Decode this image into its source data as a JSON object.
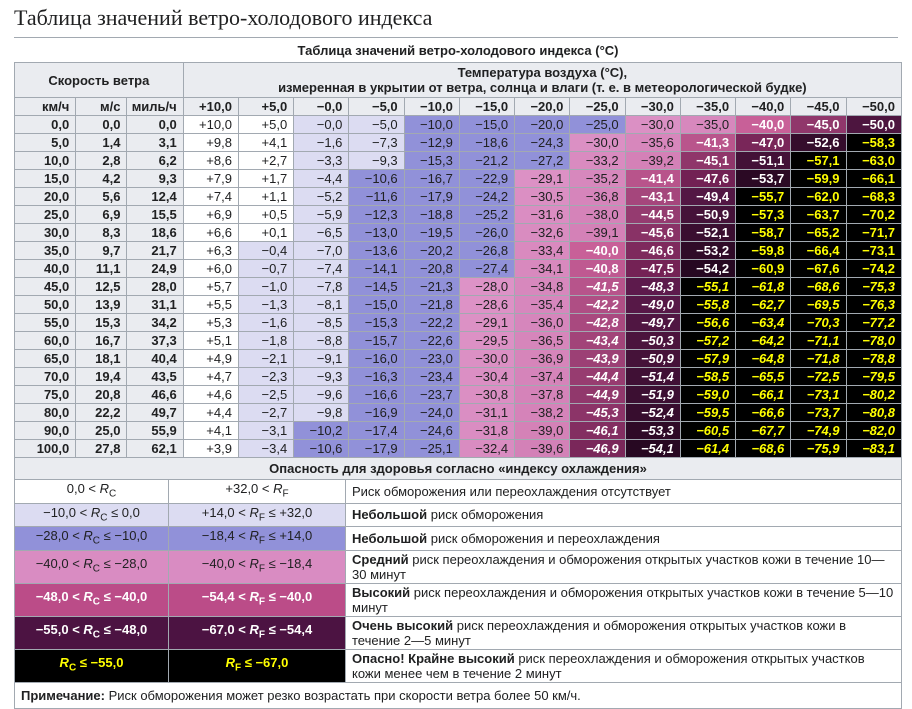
{
  "page_title": "Таблица значений ветро-холодового индекса",
  "table": {
    "caption": "Таблица значений ветро-холодового индекса (°C)",
    "speed_group_header": "Скорость ветра",
    "temp_header_line1": "Температура воздуха (°C),",
    "temp_header_line2": "измеренная в укрытии от ветра, солнца и влаги (т. е. в метеорологической будке)",
    "speed_units": [
      "км/ч",
      "м/с",
      "миль/ч"
    ],
    "temp_columns": [
      "+10,0",
      "+5,0",
      "−0,0",
      "−5,0",
      "−10,0",
      "−15,0",
      "−20,0",
      "−25,0",
      "−30,0",
      "−35,0",
      "−40,0",
      "−45,0",
      "−50,0"
    ],
    "rows": [
      {
        "speed": [
          "0,0",
          "0,0",
          "0,0"
        ],
        "values": [
          "+10,0",
          "+5,0",
          "−0,0",
          "−5,0",
          "−10,0",
          "−15,0",
          "−20,0",
          "−25,0",
          "−30,0",
          "−35,0",
          "−40,0",
          "−45,0",
          "−50,0"
        ]
      },
      {
        "speed": [
          "5,0",
          "1,4",
          "3,1"
        ],
        "values": [
          "+9,8",
          "+4,1",
          "−1,6",
          "−7,3",
          "−12,9",
          "−18,6",
          "−24,3",
          "−30,0",
          "−35,6",
          "−41,3",
          "−47,0",
          "−52,6",
          "−58,3"
        ]
      },
      {
        "speed": [
          "10,0",
          "2,8",
          "6,2"
        ],
        "values": [
          "+8,6",
          "+2,7",
          "−3,3",
          "−9,3",
          "−15,3",
          "−21,2",
          "−27,2",
          "−33,2",
          "−39,2",
          "−45,1",
          "−51,1",
          "−57,1",
          "−63,0"
        ]
      },
      {
        "speed": [
          "15,0",
          "4,2",
          "9,3"
        ],
        "values": [
          "+7,9",
          "+1,7",
          "−4,4",
          "−10,6",
          "−16,7",
          "−22,9",
          "−29,1",
          "−35,2",
          "−41,4",
          "−47,6",
          "−53,7",
          "−59,9",
          "−66,1"
        ]
      },
      {
        "speed": [
          "20,0",
          "5,6",
          "12,4"
        ],
        "values": [
          "+7,4",
          "+1,1",
          "−5,2",
          "−11,6",
          "−17,9",
          "−24,2",
          "−30,5",
          "−36,8",
          "−43,1",
          "−49,4",
          "−55,7",
          "−62,0",
          "−68,3"
        ]
      },
      {
        "speed": [
          "25,0",
          "6,9",
          "15,5"
        ],
        "values": [
          "+6,9",
          "+0,5",
          "−5,9",
          "−12,3",
          "−18,8",
          "−25,2",
          "−31,6",
          "−38,0",
          "−44,5",
          "−50,9",
          "−57,3",
          "−63,7",
          "−70,2"
        ]
      },
      {
        "speed": [
          "30,0",
          "8,3",
          "18,6"
        ],
        "values": [
          "+6,6",
          "+0,1",
          "−6,5",
          "−13,0",
          "−19,5",
          "−26,0",
          "−32,6",
          "−39,1",
          "−45,6",
          "−52,1",
          "−58,7",
          "−65,2",
          "−71,7"
        ]
      },
      {
        "speed": [
          "35,0",
          "9,7",
          "21,7"
        ],
        "values": [
          "+6,3",
          "−0,4",
          "−7,0",
          "−13,6",
          "−20,2",
          "−26,8",
          "−33,4",
          "−40,0",
          "−46,6",
          "−53,2",
          "−59,8",
          "−66,4",
          "−73,1"
        ]
      },
      {
        "speed": [
          "40,0",
          "11,1",
          "24,9"
        ],
        "values": [
          "+6,0",
          "−0,7",
          "−7,4",
          "−14,1",
          "−20,8",
          "−27,4",
          "−34,1",
          "−40,8",
          "−47,5",
          "−54,2",
          "−60,9",
          "−67,6",
          "−74,2"
        ]
      },
      {
        "speed": [
          "45,0",
          "12,5",
          "28,0"
        ],
        "values": [
          "+5,7",
          "−1,0",
          "−7,8",
          "−14,5",
          "−21,3",
          "−28,0",
          "−34,8",
          "−41,5",
          "−48,3",
          "−55,1",
          "−61,8",
          "−68,6",
          "−75,3"
        ]
      },
      {
        "speed": [
          "50,0",
          "13,9",
          "31,1"
        ],
        "values": [
          "+5,5",
          "−1,3",
          "−8,1",
          "−15,0",
          "−21,8",
          "−28,6",
          "−35,4",
          "−42,2",
          "−49,0",
          "−55,8",
          "−62,7",
          "−69,5",
          "−76,3"
        ]
      },
      {
        "speed": [
          "55,0",
          "15,3",
          "34,2"
        ],
        "values": [
          "+5,3",
          "−1,6",
          "−8,5",
          "−15,3",
          "−22,2",
          "−29,1",
          "−36,0",
          "−42,8",
          "−49,7",
          "−56,6",
          "−63,4",
          "−70,3",
          "−77,2"
        ]
      },
      {
        "speed": [
          "60,0",
          "16,7",
          "37,3"
        ],
        "values": [
          "+5,1",
          "−1,8",
          "−8,8",
          "−15,7",
          "−22,6",
          "−29,5",
          "−36,5",
          "−43,4",
          "−50,3",
          "−57,2",
          "−64,2",
          "−71,1",
          "−78,0"
        ]
      },
      {
        "speed": [
          "65,0",
          "18,1",
          "40,4"
        ],
        "values": [
          "+4,9",
          "−2,1",
          "−9,1",
          "−16,0",
          "−23,0",
          "−30,0",
          "−36,9",
          "−43,9",
          "−50,9",
          "−57,9",
          "−64,8",
          "−71,8",
          "−78,8"
        ]
      },
      {
        "speed": [
          "70,0",
          "19,4",
          "43,5"
        ],
        "values": [
          "+4,7",
          "−2,3",
          "−9,3",
          "−16,3",
          "−23,4",
          "−30,4",
          "−37,4",
          "−44,4",
          "−51,4",
          "−58,5",
          "−65,5",
          "−72,5",
          "−79,5"
        ]
      },
      {
        "speed": [
          "75,0",
          "20,8",
          "46,6"
        ],
        "values": [
          "+4,6",
          "−2,5",
          "−9,6",
          "−16,6",
          "−23,7",
          "−30,8",
          "−37,8",
          "−44,9",
          "−51,9",
          "−59,0",
          "−66,1",
          "−73,1",
          "−80,2"
        ]
      },
      {
        "speed": [
          "80,0",
          "22,2",
          "49,7"
        ],
        "values": [
          "+4,4",
          "−2,7",
          "−9,8",
          "−16,9",
          "−24,0",
          "−31,1",
          "−38,2",
          "−45,3",
          "−52,4",
          "−59,5",
          "−66,6",
          "−73,7",
          "−80,8"
        ]
      },
      {
        "speed": [
          "90,0",
          "25,0",
          "55,9"
        ],
        "values": [
          "+4,1",
          "−3,1",
          "−10,2",
          "−17,4",
          "−24,6",
          "−31,8",
          "−39,0",
          "−46,1",
          "−53,3",
          "−60,5",
          "−67,7",
          "−74,9",
          "−82,0"
        ]
      },
      {
        "speed": [
          "100,0",
          "27,8",
          "62,1"
        ],
        "values": [
          "+3,9",
          "−3,4",
          "−10,6",
          "−17,9",
          "−25,1",
          "−32,4",
          "−39,6",
          "−46,9",
          "−54,1",
          "−61,4",
          "−68,6",
          "−75,9",
          "−83,1"
        ]
      }
    ]
  },
  "legend": {
    "section_title": "Опасность для здоровья согласно «индексу охлаждения»",
    "rows": [
      {
        "rc": "0,0 < R_C",
        "rf": "+32,0 < R_F",
        "desc_bold": "",
        "desc_text": "Риск обморожения или переохлаждения отсутствует"
      },
      {
        "rc": "−10,0 < R_C ≤ 0,0",
        "rf": "+14,0 < R_F ≤ +32,0",
        "desc_bold": "Небольшой",
        "desc_text": " риск обморожения"
      },
      {
        "rc": "−28,0 < R_C ≤ −10,0",
        "rf": "−18,4 < R_F ≤ +14,0",
        "desc_bold": "Небольшой",
        "desc_text": " риск обморожения и переохлаждения"
      },
      {
        "rc": "−40,0 < R_C ≤ −28,0",
        "rf": "−40,0 < R_F ≤ −18,4",
        "desc_bold": "Средний",
        "desc_text": " риск переохлаждения и обморожения открытых участков кожи в течение 10—30 минут"
      },
      {
        "rc": "−48,0 < R_C ≤ −40,0",
        "rf": "−54,4 < R_F ≤ −40,0",
        "desc_bold": "Высокий",
        "desc_text": " риск переохлаждения и обморожения открытых участков кожи в течение 5—10 минут"
      },
      {
        "rc": "−55,0 < R_C ≤ −48,0",
        "rf": "−67,0 < R_F ≤ −54,4",
        "desc_bold": "Очень высокий",
        "desc_text": " риск переохлаждения и обморожения открытых участков кожи в течение 2—5 минут"
      },
      {
        "rc": "R_C ≤ −55,0",
        "rf": "R_F ≤ −67,0",
        "desc_bold": "Опасно! Крайне высокий",
        "desc_text": " риск переохлаждения и обморожения открытых участков кожи менее чем в течение 2 минут"
      }
    ],
    "note_bold": "Примечание:",
    "note_text": " Риск обморожения может резко возрастать при скорости ветра более 50 км/ч."
  },
  "colors": {
    "text": "#202122",
    "border": "#a2a9b1",
    "header_bg": "#eaecf0",
    "band_no_risk": "#ffffff",
    "band_lavender": "#dcdcf2",
    "band_purple": "#9191d9",
    "band_pink_start": "#dd93c7",
    "band_pink_end": "#d380b6",
    "band_magenta_start": "#c86098",
    "band_magenta_end": "#6e1e50",
    "band_maroon_start": "#601b4e",
    "band_maroon_end": "#1f051b",
    "band_black": "#000000",
    "dark_cell_text": "#ffffff",
    "danger_cell_text": "#ffff00",
    "legend_bands": [
      "#ffffff",
      "#dcdcf2",
      "#9191d9",
      "#d98cc2",
      "#bb4c88",
      "#4c1342",
      "#000000"
    ],
    "thresholds": {
      "lavender_above": -10,
      "purple_above": -28,
      "pink_above": -40,
      "magenta_above": -48,
      "maroon_above": -55,
      "italic_speed_from": 45
    }
  }
}
